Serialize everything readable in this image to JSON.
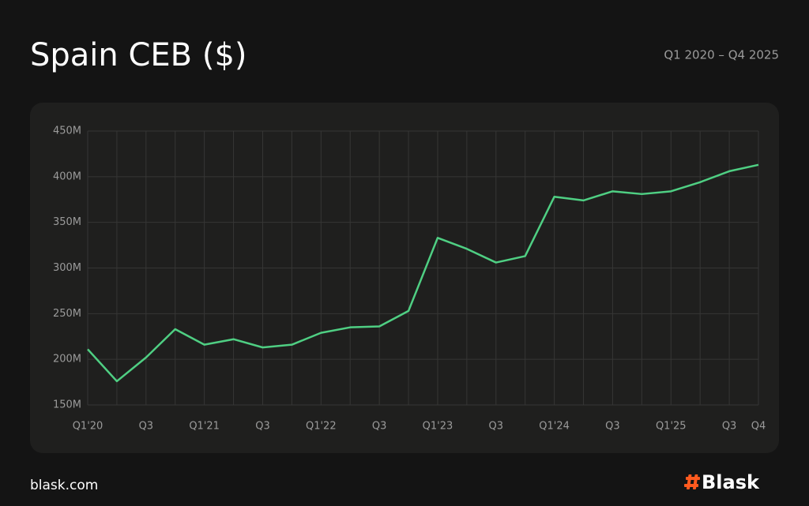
{
  "chart_data": {
    "type": "line",
    "title": "Spain CEB ($)",
    "subtitle": "Q1 2020 – Q4 2025",
    "categories": [
      "Q1'20",
      null,
      "Q3",
      null,
      "Q1'21",
      null,
      "Q3",
      null,
      "Q1'22",
      null,
      "Q3",
      null,
      "Q1'23",
      null,
      "Q3",
      null,
      "Q1'24",
      null,
      "Q3",
      null,
      "Q1'25",
      null,
      "Q3",
      "Q4"
    ],
    "values": [
      211,
      176,
      202,
      233,
      216,
      222,
      213,
      216,
      229,
      235,
      236,
      253,
      333,
      321,
      306,
      313,
      378,
      374,
      384,
      381,
      384,
      394,
      406,
      413
    ],
    "color": "#4fcf83",
    "ylim": [
      150,
      450
    ],
    "yticks": [
      {
        "value": 150,
        "label": "150M"
      },
      {
        "value": 200,
        "label": "200M"
      },
      {
        "value": 250,
        "label": "250M"
      },
      {
        "value": 300,
        "label": "300M"
      },
      {
        "value": 350,
        "label": "350M"
      },
      {
        "value": 400,
        "label": "400M"
      },
      {
        "value": 450,
        "label": "450M"
      }
    ],
    "grid": true,
    "source": "blask.com",
    "brand": "Blask"
  }
}
